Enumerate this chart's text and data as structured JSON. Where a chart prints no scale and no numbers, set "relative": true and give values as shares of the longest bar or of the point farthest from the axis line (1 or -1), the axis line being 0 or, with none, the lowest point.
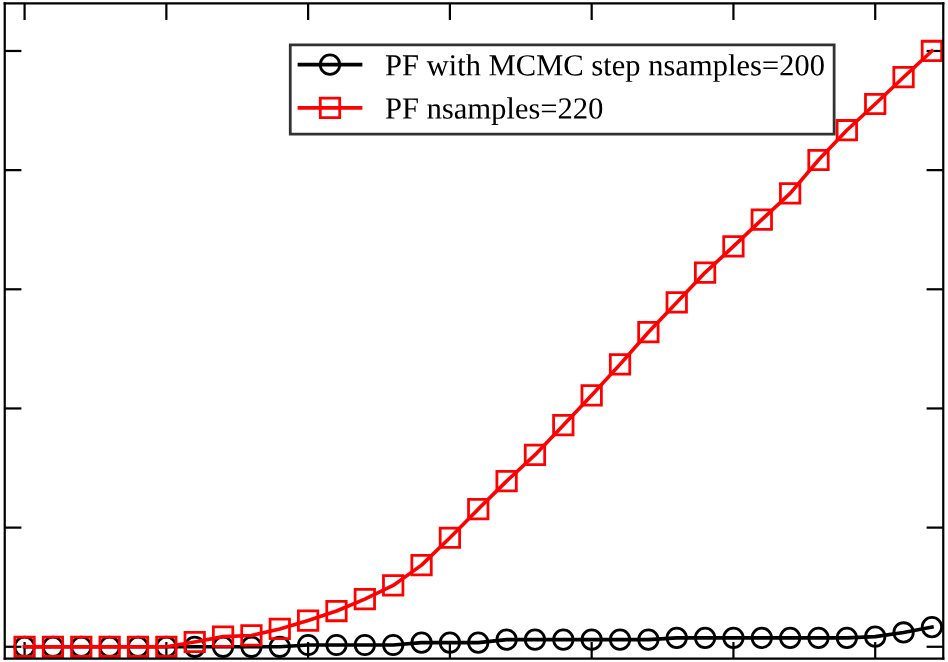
{
  "chart_data": {
    "type": "line",
    "relative": true,
    "tick_labels": false,
    "grid": false,
    "legend": "top right",
    "line_style": "solid",
    "categories": [
      null,
      null,
      null,
      null,
      null,
      null,
      null,
      null,
      null,
      null,
      null,
      null,
      null,
      null,
      null,
      null,
      null,
      null,
      null,
      null,
      null,
      null,
      null,
      null,
      null,
      null,
      null,
      null,
      null,
      null,
      null,
      null,
      null
    ],
    "series": [
      {
        "name": "PF with MCMC step nsamples=200",
        "color": "#000000",
        "marker": "circle",
        "values": [
          0,
          0,
          0,
          0,
          0,
          0,
          0,
          0,
          0,
          0,
          0.003,
          0.003,
          0.003,
          0.003,
          0.007,
          0.007,
          0.007,
          0.012,
          0.012,
          0.012,
          0.012,
          0.012,
          0.012,
          0.015,
          0.015,
          0.015,
          0.015,
          0.015,
          0.015,
          0.015,
          0.017,
          0.024,
          0.033
        ]
      },
      {
        "name": "PF nsamples=220",
        "color": "#ff0000",
        "marker": "square",
        "values": [
          0,
          0,
          0,
          0,
          0,
          0,
          0.008,
          0.017,
          0.019,
          0.03,
          0.044,
          0.06,
          0.08,
          0.103,
          0.137,
          0.183,
          0.231,
          0.278,
          0.322,
          0.372,
          0.422,
          0.474,
          0.528,
          0.578,
          0.628,
          0.672,
          0.717,
          0.761,
          0.817,
          0.867,
          0.911,
          0.956,
          1.0
        ]
      }
    ]
  }
}
